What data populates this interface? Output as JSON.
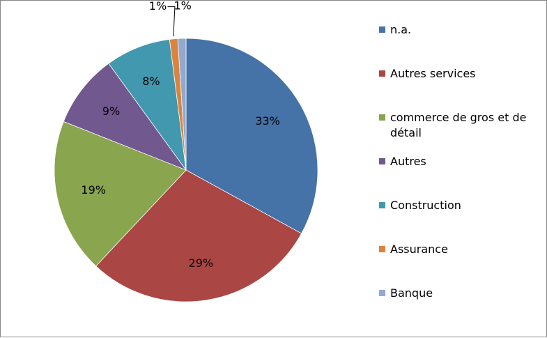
{
  "chart_data": {
    "type": "pie",
    "slices": [
      {
        "name": "n.a.",
        "value": 33,
        "label": "33%",
        "color": "#4572A7"
      },
      {
        "name": "Autres services",
        "value": 29,
        "label": "29%",
        "color": "#AA4643"
      },
      {
        "name": "commerce de gros et de détail",
        "legend_lines": [
          "commerce de gros et de",
          "détail"
        ],
        "value": 19,
        "label": "19%",
        "color": "#89A54E"
      },
      {
        "name": "Autres",
        "value": 9,
        "label": "9%",
        "color": "#71588F"
      },
      {
        "name": "Construction",
        "value": 8,
        "label": "8%",
        "color": "#4198AF"
      },
      {
        "name": "Assurance",
        "value": 1,
        "label": "1%",
        "color": "#DB843D"
      },
      {
        "name": "Banque",
        "value": 1,
        "label": "1%",
        "color": "#93A9CF"
      }
    ],
    "legend_position": "right"
  }
}
